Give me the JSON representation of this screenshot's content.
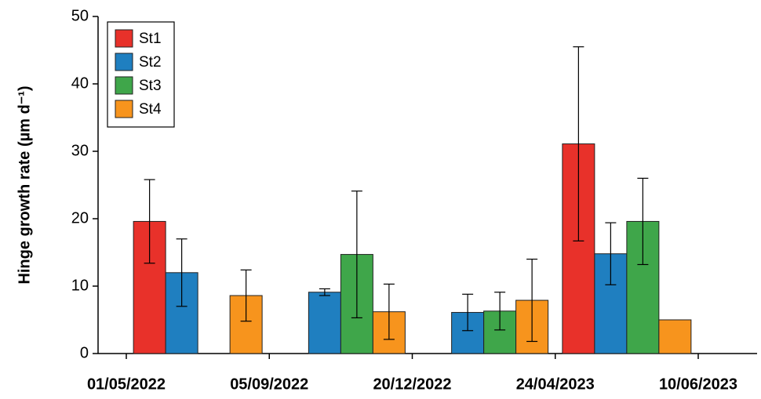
{
  "chart_data": {
    "type": "bar",
    "y_label": "Hinge growth rate (µm d⁻¹)",
    "x_boundaries": [
      "01/05/2022",
      "05/09/2022",
      "20/12/2022",
      "24/04/2023",
      "10/06/2023"
    ],
    "ylim": [
      0,
      50
    ],
    "yticks": [
      0,
      10,
      20,
      30,
      40,
      50
    ],
    "legend": "top-left",
    "series": [
      {
        "name": "St1",
        "color": "#e8312a",
        "values": [
          19.6,
          null,
          null,
          31.1
        ],
        "errors": [
          6.2,
          null,
          null,
          14.4
        ]
      },
      {
        "name": "St2",
        "color": "#1f7fc0",
        "values": [
          12,
          9.1,
          6.1,
          14.8
        ],
        "errors": [
          5,
          0.5,
          2.7,
          4.6
        ]
      },
      {
        "name": "St3",
        "color": "#3fa64a",
        "values": [
          null,
          14.7,
          6.3,
          19.6
        ],
        "errors": [
          null,
          9.4,
          2.8,
          6.4
        ]
      },
      {
        "name": "St4",
        "color": "#f7941d",
        "values": [
          8.6,
          6.2,
          7.9,
          5
        ],
        "errors": [
          3.8,
          4.1,
          6.1,
          null
        ]
      }
    ]
  }
}
